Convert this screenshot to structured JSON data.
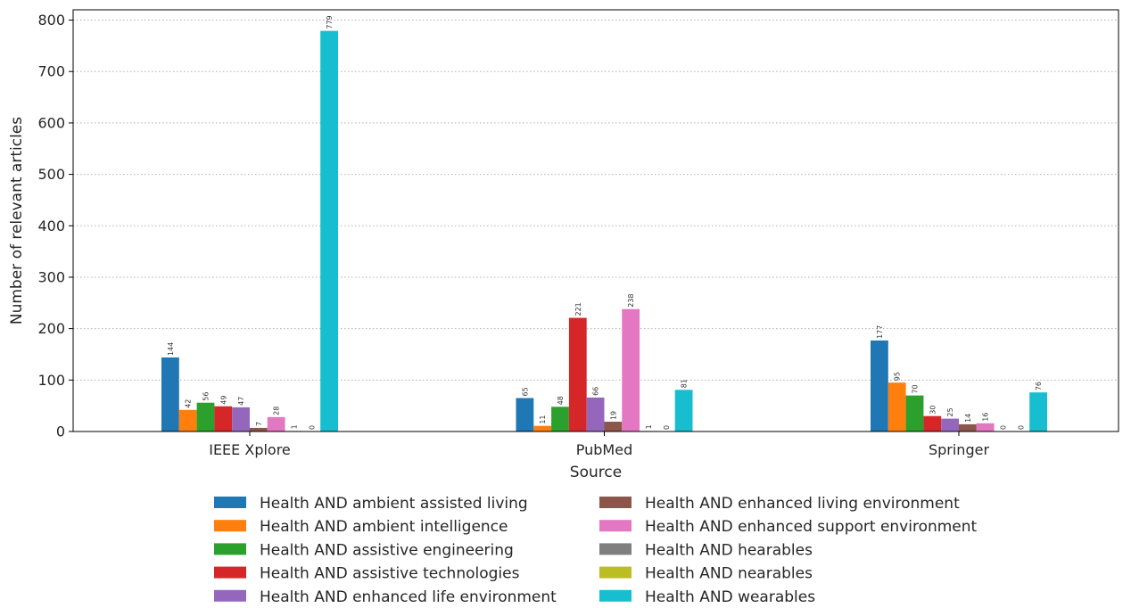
{
  "chart_data": {
    "type": "bar",
    "xlabel": "Source",
    "ylabel": "Number of relevant articles",
    "ylim": [
      0,
      820
    ],
    "yticks": [
      0,
      100,
      200,
      300,
      400,
      500,
      600,
      700,
      800
    ],
    "grid": "horizontal dotted",
    "legend_position": "bottom-center",
    "legend_columns": 2,
    "categories": [
      "IEEE Xplore",
      "PubMed",
      "Springer"
    ],
    "series": [
      {
        "name": "Health AND ambient assisted living",
        "color": "#1f77b4",
        "values": [
          144,
          65,
          177
        ]
      },
      {
        "name": "Health AND ambient intelligence",
        "color": "#ff7f0e",
        "values": [
          42,
          11,
          95
        ]
      },
      {
        "name": "Health AND assistive engineering",
        "color": "#2ca02c",
        "values": [
          56,
          48,
          70
        ]
      },
      {
        "name": "Health AND assistive technologies",
        "color": "#d62728",
        "values": [
          49,
          221,
          30
        ]
      },
      {
        "name": "Health AND enhanced life environment",
        "color": "#9467bd",
        "values": [
          47,
          66,
          25
        ]
      },
      {
        "name": "Health AND enhanced living environment",
        "color": "#8c564b",
        "values": [
          7,
          19,
          14
        ]
      },
      {
        "name": "Health AND enhanced support environment",
        "color": "#e377c2",
        "values": [
          28,
          238,
          16
        ]
      },
      {
        "name": "Health AND hearables",
        "color": "#7f7f7f",
        "values": [
          1,
          1,
          0
        ]
      },
      {
        "name": "Health AND nearables",
        "color": "#bcbd22",
        "values": [
          0,
          0,
          0
        ]
      },
      {
        "name": "Health AND wearables",
        "color": "#17becf",
        "values": [
          779,
          81,
          76
        ]
      }
    ]
  }
}
